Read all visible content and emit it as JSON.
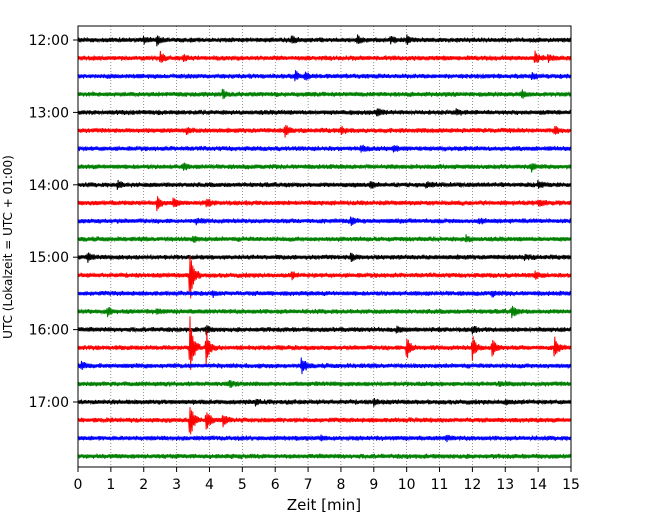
{
  "chart_data": {
    "type": "line",
    "title": "",
    "xlabel": "Zeit  [min]",
    "ylabel": "UTC (Lokalzeit = UTC + 01:00)",
    "xlim": [
      0,
      15
    ],
    "x_ticks": [
      0,
      1,
      2,
      3,
      4,
      5,
      6,
      7,
      8,
      9,
      10,
      11,
      12,
      13,
      14,
      15
    ],
    "y_tick_labels": [
      "12:00",
      "13:00",
      "14:00",
      "15:00",
      "16:00",
      "17:00"
    ],
    "grid": "vertical dotted lines at each minute",
    "trace_colors": [
      "#000000",
      "#ff0000",
      "#0000ff",
      "#008000"
    ],
    "traces": [
      {
        "start": "12:00",
        "events": [
          {
            "x": 2.0,
            "amp": 0.4
          },
          {
            "x": 2.4,
            "amp": 0.5
          },
          {
            "x": 6.5,
            "amp": 0.4
          },
          {
            "x": 8.5,
            "amp": 0.6
          },
          {
            "x": 9.5,
            "amp": 0.4
          },
          {
            "x": 10.0,
            "amp": 0.5
          }
        ]
      },
      {
        "start": "12:15",
        "events": [
          {
            "x": 2.5,
            "amp": 0.8
          },
          {
            "x": 3.2,
            "amp": 0.4
          },
          {
            "x": 13.9,
            "amp": 0.7
          },
          {
            "x": 14.3,
            "amp": 0.4
          }
        ]
      },
      {
        "start": "12:30",
        "events": [
          {
            "x": 6.6,
            "amp": 0.6
          },
          {
            "x": 6.9,
            "amp": 0.4
          },
          {
            "x": 13.8,
            "amp": 0.5
          }
        ]
      },
      {
        "start": "12:45",
        "events": [
          {
            "x": 4.4,
            "amp": 0.6
          },
          {
            "x": 13.5,
            "amp": 0.5
          }
        ]
      },
      {
        "start": "13:00",
        "events": [
          {
            "x": 9.1,
            "amp": 0.6
          },
          {
            "x": 11.5,
            "amp": 0.3
          }
        ]
      },
      {
        "start": "13:15",
        "events": [
          {
            "x": 6.3,
            "amp": 0.8
          },
          {
            "x": 8.0,
            "amp": 0.5
          },
          {
            "x": 3.3,
            "amp": 0.4
          },
          {
            "x": 14.5,
            "amp": 0.5
          }
        ]
      },
      {
        "start": "13:30",
        "events": [
          {
            "x": 8.6,
            "amp": 0.5
          },
          {
            "x": 9.6,
            "amp": 0.4
          }
        ]
      },
      {
        "start": "13:45",
        "events": [
          {
            "x": 3.2,
            "amp": 0.4
          },
          {
            "x": 13.8,
            "amp": 0.5
          }
        ]
      },
      {
        "start": "14:00",
        "events": [
          {
            "x": 1.2,
            "amp": 0.5
          },
          {
            "x": 8.9,
            "amp": 0.4
          },
          {
            "x": 10.6,
            "amp": 0.3
          },
          {
            "x": 14.0,
            "amp": 0.4
          }
        ]
      },
      {
        "start": "14:15",
        "events": [
          {
            "x": 2.4,
            "amp": 0.9
          },
          {
            "x": 2.9,
            "amp": 0.6
          },
          {
            "x": 3.9,
            "amp": 0.5
          },
          {
            "x": 14.0,
            "amp": 0.4
          }
        ]
      },
      {
        "start": "14:30",
        "events": [
          {
            "x": 3.6,
            "amp": 0.3
          },
          {
            "x": 8.3,
            "amp": 0.5
          },
          {
            "x": 12.2,
            "amp": 0.3
          }
        ]
      },
      {
        "start": "14:45",
        "events": [
          {
            "x": 3.5,
            "amp": 0.4
          },
          {
            "x": 11.8,
            "amp": 0.4
          }
        ]
      },
      {
        "start": "15:00",
        "events": [
          {
            "x": 0.3,
            "amp": 0.5
          },
          {
            "x": 8.3,
            "amp": 0.7
          },
          {
            "x": 13.6,
            "amp": 0.3
          }
        ]
      },
      {
        "start": "15:15",
        "events": [
          {
            "x": 3.4,
            "amp": 4.0
          },
          {
            "x": 6.5,
            "amp": 0.4
          },
          {
            "x": 13.9,
            "amp": 0.5
          }
        ]
      },
      {
        "start": "15:30",
        "events": [
          {
            "x": 4.1,
            "amp": 0.3
          },
          {
            "x": 12.6,
            "amp": 0.3
          }
        ]
      },
      {
        "start": "15:45",
        "events": [
          {
            "x": 0.9,
            "amp": 0.6
          },
          {
            "x": 13.2,
            "amp": 0.8
          },
          {
            "x": 2.4,
            "amp": 0.3
          }
        ]
      },
      {
        "start": "16:00",
        "events": [
          {
            "x": 3.9,
            "amp": 0.5
          },
          {
            "x": 9.7,
            "amp": 0.4
          },
          {
            "x": 12.0,
            "amp": 0.4
          }
        ]
      },
      {
        "start": "16:15",
        "events": [
          {
            "x": 3.4,
            "amp": 4.0
          },
          {
            "x": 3.9,
            "amp": 2.5
          },
          {
            "x": 10.0,
            "amp": 1.6
          },
          {
            "x": 12.0,
            "amp": 1.5
          },
          {
            "x": 12.6,
            "amp": 1.3
          },
          {
            "x": 14.5,
            "amp": 1.5
          }
        ]
      },
      {
        "start": "16:30",
        "events": [
          {
            "x": 6.8,
            "amp": 1.2
          },
          {
            "x": 0.1,
            "amp": 0.4
          }
        ]
      },
      {
        "start": "16:45",
        "events": [
          {
            "x": 4.6,
            "amp": 0.4
          },
          {
            "x": 12.8,
            "amp": 0.3
          }
        ]
      },
      {
        "start": "17:00",
        "events": [
          {
            "x": 5.4,
            "amp": 0.3
          },
          {
            "x": 9.0,
            "amp": 0.4
          },
          {
            "x": 13.0,
            "amp": 0.3
          }
        ]
      },
      {
        "start": "17:15",
        "events": [
          {
            "x": 3.4,
            "amp": 2.5
          },
          {
            "x": 3.9,
            "amp": 1.5
          },
          {
            "x": 4.4,
            "amp": 0.8
          }
        ]
      },
      {
        "start": "17:30",
        "events": [
          {
            "x": 7.4,
            "amp": 0.3
          },
          {
            "x": 11.2,
            "amp": 0.4
          }
        ]
      },
      {
        "start": "17:45",
        "events": []
      }
    ]
  }
}
